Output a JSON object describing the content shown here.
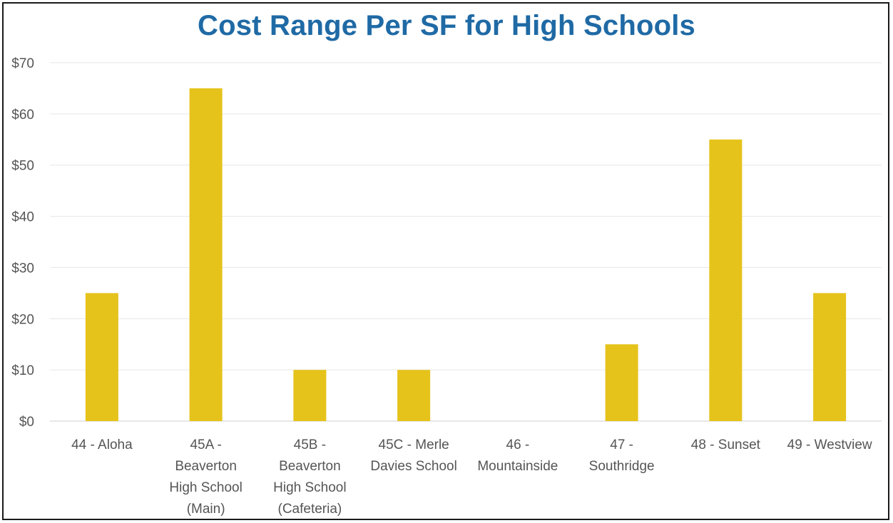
{
  "chart_data": {
    "type": "bar",
    "title": "Cost Range Per SF for High Schools",
    "xlabel": "",
    "ylabel": "",
    "ylim": [
      0,
      70
    ],
    "yticks": [
      "$0",
      "$10",
      "$20",
      "$30",
      "$40",
      "$50",
      "$60",
      "$70"
    ],
    "categories": [
      [
        "44 - Aloha"
      ],
      [
        "45A -",
        "Beaverton",
        "High School",
        "(Main)"
      ],
      [
        "45B -",
        "Beaverton",
        "High School",
        "(Cafeteria)"
      ],
      [
        "45C - Merle",
        "Davies School"
      ],
      [
        "46 -",
        "Mountainside"
      ],
      [
        "47 -",
        "Southridge"
      ],
      [
        "48 - Sunset"
      ],
      [
        "49 - Westview"
      ]
    ],
    "values": [
      25,
      65,
      10,
      10,
      0,
      15,
      55,
      25
    ],
    "bar_color": "#e5c31b",
    "grid": true,
    "legend": "none"
  }
}
